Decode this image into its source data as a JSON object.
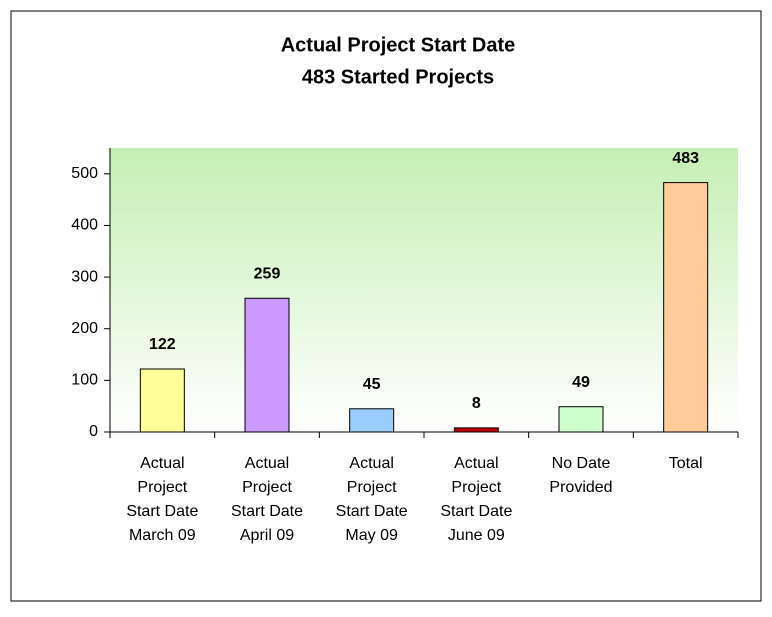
{
  "chart_data": {
    "type": "bar",
    "title": "Actual Project Start Date",
    "subtitle": "483 Started Projects",
    "categories": [
      "Actual\nProject\nStart Date\nMarch 09",
      "Actual\nProject\nStart Date\nApril 09",
      "Actual\nProject\nStart Date\nMay 09",
      "Actual\nProject\nStart Date\nJune 09",
      "No Date\nProvided",
      "Total"
    ],
    "values": [
      122,
      259,
      45,
      8,
      49,
      483
    ],
    "colors": [
      "#ffff99",
      "#cc99ff",
      "#99ccff",
      "#c00000",
      "#ccffcc",
      "#ffcc99"
    ],
    "ylim": [
      0,
      550
    ],
    "yticks": [
      0,
      100,
      200,
      300,
      400,
      500
    ],
    "grid": false
  }
}
